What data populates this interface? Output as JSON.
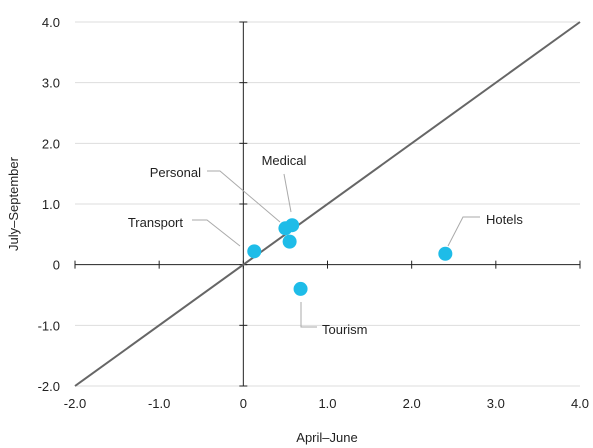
{
  "chart_data": {
    "type": "scatter",
    "title": "",
    "xlabel": "April–June",
    "ylabel": "July–September",
    "xlim": [
      -2.0,
      4.0
    ],
    "ylim": [
      -2.0,
      4.0
    ],
    "x_ticks": [
      -2.0,
      -1.0,
      0,
      1.0,
      2.0,
      3.0,
      4.0
    ],
    "x_tick_labels": [
      "-2.0",
      "-1.0",
      "0",
      "1.0",
      "2.0",
      "3.0",
      "4.0"
    ],
    "y_ticks": [
      -2.0,
      -1.0,
      0,
      1.0,
      2.0,
      3.0,
      4.0
    ],
    "y_tick_labels": [
      "-2.0",
      "-1.0",
      "0",
      "1.0",
      "2.0",
      "3.0",
      "4.0"
    ],
    "grid": true,
    "reference_line": "y = x",
    "series": [
      {
        "points": [
          {
            "label": "Transport",
            "x": 0.13,
            "y": 0.22
          },
          {
            "label": "Personal",
            "x": 0.5,
            "y": 0.6
          },
          {
            "label": "Medical",
            "x": 0.58,
            "y": 0.65
          },
          {
            "label": "",
            "x": 0.55,
            "y": 0.38
          },
          {
            "label": "Tourism",
            "x": 0.68,
            "y": -0.4
          },
          {
            "label": "Hotels",
            "x": 2.4,
            "y": 0.18
          }
        ]
      }
    ],
    "colors": {
      "point": "#1ebce8",
      "diagonal": "#666666",
      "gridline": "#dddddd",
      "axis": "#222222",
      "leader": "#aaaaaa"
    }
  }
}
